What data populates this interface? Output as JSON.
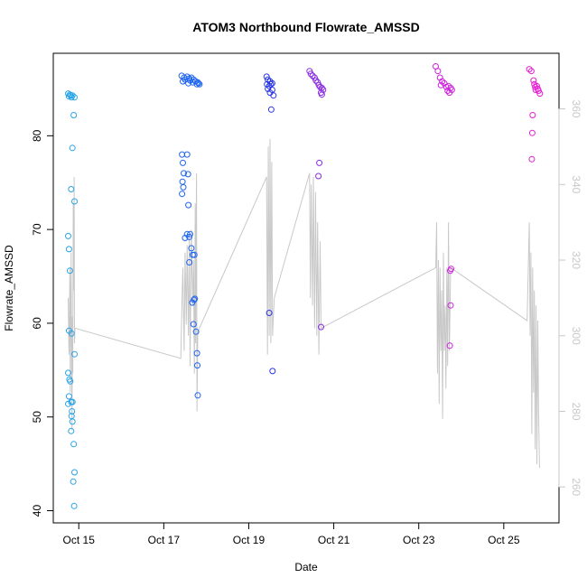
{
  "chart_data": {
    "type": "scatter",
    "title": "ATOM3 Northbound Flowrate_AMSSD",
    "xlabel": "Date",
    "ylabel": "Flowrate_AMSSD",
    "x_ticks": [
      "Oct 15",
      "Oct 17",
      "Oct 19",
      "Oct 21",
      "Oct 23",
      "Oct 25"
    ],
    "x_tick_days": [
      15,
      17,
      19,
      21,
      23,
      25
    ],
    "xlim": [
      14.4,
      26.3
    ],
    "y_ticks": [
      40,
      50,
      60,
      70,
      80
    ],
    "ylim": [
      38.7,
      88.8
    ],
    "y2_ticks": [
      260,
      280,
      300,
      320,
      340,
      360
    ],
    "y2lim": [
      250.5,
      374.7
    ],
    "y2_color": "#c8c8c8",
    "grid": false,
    "legend": "none",
    "series": [
      {
        "color": "#29a3e8",
        "points": [
          [
            14.75,
            84.5
          ],
          [
            14.77,
            84.2
          ],
          [
            14.79,
            84.4
          ],
          [
            14.81,
            84.3
          ],
          [
            14.83,
            84.1
          ],
          [
            14.85,
            84.3
          ],
          [
            14.9,
            84.1
          ],
          [
            14.88,
            82.2
          ],
          [
            14.85,
            78.7
          ],
          [
            14.82,
            74.3
          ],
          [
            14.9,
            73.0
          ],
          [
            14.75,
            69.3
          ],
          [
            14.77,
            67.9
          ],
          [
            14.79,
            65.6
          ],
          [
            14.77,
            59.2
          ],
          [
            14.83,
            58.9
          ],
          [
            14.9,
            56.7
          ],
          [
            14.75,
            54.7
          ],
          [
            14.78,
            54.0
          ],
          [
            14.8,
            53.8
          ],
          [
            14.77,
            52.2
          ],
          [
            14.82,
            51.6
          ],
          [
            14.85,
            51.6
          ],
          [
            14.75,
            51.4
          ],
          [
            14.84,
            50.6
          ],
          [
            14.83,
            50.1
          ],
          [
            14.85,
            49.5
          ],
          [
            14.82,
            48.5
          ],
          [
            14.88,
            47.1
          ],
          [
            14.9,
            44.1
          ],
          [
            14.87,
            43.1
          ],
          [
            14.89,
            40.5
          ]
        ]
      },
      {
        "color": "#1e64f0",
        "points": [
          [
            17.42,
            86.4
          ],
          [
            17.48,
            86.2
          ],
          [
            17.55,
            86.3
          ],
          [
            17.6,
            86.1
          ],
          [
            17.65,
            86.2
          ],
          [
            17.5,
            86.0
          ],
          [
            17.62,
            85.9
          ],
          [
            17.7,
            86.0
          ],
          [
            17.75,
            85.8
          ],
          [
            17.8,
            85.7
          ],
          [
            17.45,
            85.8
          ],
          [
            17.68,
            85.7
          ],
          [
            17.58,
            85.6
          ],
          [
            17.82,
            85.6
          ],
          [
            17.78,
            85.5
          ],
          [
            17.84,
            85.5
          ],
          [
            17.43,
            78.0
          ],
          [
            17.55,
            78.0
          ],
          [
            17.45,
            77.1
          ],
          [
            17.47,
            76.0
          ],
          [
            17.57,
            75.9
          ],
          [
            17.44,
            75.1
          ],
          [
            17.46,
            74.5
          ],
          [
            17.43,
            73.8
          ],
          [
            17.58,
            72.6
          ],
          [
            17.55,
            69.5
          ],
          [
            17.62,
            69.5
          ],
          [
            17.5,
            69.1
          ],
          [
            17.6,
            69.2
          ],
          [
            17.65,
            68.0
          ],
          [
            17.68,
            67.3
          ],
          [
            17.72,
            67.3
          ],
          [
            17.6,
            66.5
          ],
          [
            17.73,
            62.6
          ],
          [
            17.71,
            62.5
          ],
          [
            17.67,
            62.2
          ],
          [
            17.7,
            59.9
          ],
          [
            17.76,
            59.1
          ],
          [
            17.78,
            56.8
          ],
          [
            17.79,
            55.5
          ],
          [
            17.8,
            52.3
          ]
        ]
      },
      {
        "color": "#2a36e6",
        "points": [
          [
            19.42,
            86.3
          ],
          [
            19.45,
            86.0
          ],
          [
            19.5,
            85.8
          ],
          [
            19.43,
            85.5
          ],
          [
            19.48,
            85.3
          ],
          [
            19.52,
            85.5
          ],
          [
            19.55,
            85.6
          ],
          [
            19.45,
            85.0
          ],
          [
            19.5,
            84.6
          ],
          [
            19.55,
            84.9
          ],
          [
            19.58,
            84.3
          ],
          [
            19.53,
            82.8
          ],
          [
            19.48,
            61.1
          ],
          [
            19.56,
            54.9
          ]
        ]
      },
      {
        "color": "#8a2be2",
        "points": [
          [
            20.43,
            86.9
          ],
          [
            20.46,
            86.6
          ],
          [
            20.5,
            86.4
          ],
          [
            20.55,
            86.2
          ],
          [
            20.58,
            85.9
          ],
          [
            20.62,
            85.7
          ],
          [
            20.65,
            85.4
          ],
          [
            20.68,
            85.2
          ],
          [
            20.72,
            85.1
          ],
          [
            20.75,
            84.9
          ],
          [
            20.7,
            84.6
          ],
          [
            20.72,
            84.4
          ],
          [
            20.66,
            77.1
          ],
          [
            20.64,
            75.7
          ],
          [
            20.7,
            59.6
          ]
        ]
      },
      {
        "color": "#cc22dd",
        "points": [
          [
            23.4,
            87.4
          ],
          [
            23.45,
            86.9
          ],
          [
            23.5,
            86.2
          ],
          [
            23.55,
            85.8
          ],
          [
            23.52,
            85.4
          ],
          [
            23.6,
            85.6
          ],
          [
            23.65,
            85.2
          ],
          [
            23.7,
            85.3
          ],
          [
            23.75,
            85.1
          ],
          [
            23.68,
            84.8
          ],
          [
            23.72,
            84.6
          ],
          [
            23.78,
            84.9
          ],
          [
            23.76,
            65.8
          ],
          [
            23.74,
            65.6
          ],
          [
            23.75,
            61.9
          ],
          [
            23.73,
            57.6
          ]
        ]
      },
      {
        "color": "#e61ed2",
        "points": [
          [
            25.6,
            87.1
          ],
          [
            25.65,
            86.9
          ],
          [
            25.7,
            85.9
          ],
          [
            25.72,
            85.5
          ],
          [
            25.74,
            85.2
          ],
          [
            25.78,
            85.3
          ],
          [
            25.82,
            84.8
          ],
          [
            25.85,
            84.5
          ],
          [
            25.8,
            85.0
          ],
          [
            25.75,
            84.9
          ],
          [
            25.68,
            82.2
          ],
          [
            25.67,
            80.3
          ],
          [
            25.66,
            77.5
          ]
        ]
      }
    ],
    "line_series": {
      "color": "#c8c8c8",
      "axis": "right",
      "segments": [
        {
          "points": [
            [
              14.75,
              310
            ],
            [
              14.77,
              295
            ],
            [
              14.79,
              318
            ],
            [
              14.8,
              285
            ],
            [
              14.82,
              322
            ],
            [
              14.83,
              300
            ],
            [
              14.84,
              275
            ],
            [
              14.85,
              305
            ],
            [
              14.86,
              290
            ],
            [
              14.87,
              335
            ],
            [
              14.88,
              312
            ],
            [
              14.89,
              342
            ],
            [
              14.9,
              298
            ],
            [
              14.91,
              302
            ],
            [
              17.4,
              294
            ],
            [
              17.43,
              310
            ],
            [
              17.45,
              318
            ],
            [
              17.48,
              296
            ],
            [
              17.5,
              322
            ],
            [
              17.53,
              303
            ],
            [
              17.55,
              324
            ],
            [
              17.58,
              300
            ],
            [
              17.6,
              326
            ],
            [
              17.62,
              292
            ],
            [
              17.65,
              328
            ],
            [
              17.68,
              308
            ],
            [
              17.7,
              320
            ],
            [
              17.72,
              290
            ],
            [
              17.74,
              335
            ],
            [
              17.75,
              298
            ],
            [
              17.77,
              343
            ],
            [
              17.78,
              280
            ],
            [
              17.8,
              301
            ],
            [
              19.42,
              342
            ],
            [
              19.44,
              295
            ],
            [
              19.46,
              350
            ],
            [
              19.48,
              300
            ],
            [
              19.5,
              352
            ],
            [
              19.52,
              298
            ],
            [
              19.54,
              346
            ],
            [
              19.56,
              300
            ],
            [
              19.6,
              310
            ],
            [
              20.43,
              343
            ],
            [
              20.45,
              310
            ],
            [
              20.47,
              340
            ],
            [
              20.5,
              308
            ],
            [
              20.52,
              342
            ],
            [
              20.55,
              302
            ],
            [
              20.57,
              338
            ],
            [
              20.6,
              300
            ],
            [
              20.62,
              330
            ],
            [
              20.65,
              295
            ],
            [
              20.68,
              325
            ],
            [
              20.7,
              302
            ],
            [
              23.4,
              318
            ],
            [
              23.42,
              330
            ],
            [
              23.44,
              290
            ],
            [
              23.46,
              320
            ],
            [
              23.48,
              282
            ],
            [
              23.5,
              318
            ],
            [
              23.52,
              296
            ],
            [
              23.54,
              312
            ],
            [
              23.56,
              278
            ],
            [
              23.58,
              322
            ],
            [
              23.6,
              296
            ],
            [
              23.62,
              308
            ],
            [
              23.64,
              286
            ],
            [
              23.66,
              318
            ],
            [
              23.68,
              292
            ],
            [
              23.7,
              330
            ],
            [
              23.72,
              296
            ],
            [
              23.75,
              318
            ],
            [
              25.55,
              304
            ],
            [
              25.6,
              330
            ],
            [
              25.62,
              300
            ],
            [
              25.64,
              322
            ],
            [
              25.66,
              274
            ],
            [
              25.68,
              318
            ],
            [
              25.7,
              285
            ],
            [
              25.72,
              312
            ],
            [
              25.74,
              270
            ],
            [
              25.76,
              308
            ],
            [
              25.78,
              266
            ],
            [
              25.8,
              304
            ],
            [
              25.82,
              280
            ],
            [
              25.84,
              265
            ]
          ]
        }
      ]
    }
  }
}
